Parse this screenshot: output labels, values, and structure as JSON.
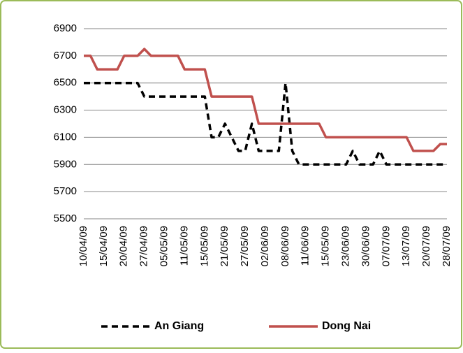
{
  "chart_data": {
    "type": "line",
    "categories": [
      "10/04/09",
      null,
      null,
      "15/04/09",
      null,
      null,
      "20/04/09",
      null,
      null,
      "27/04/09",
      null,
      null,
      "05/05/09",
      null,
      null,
      "11/05/09",
      null,
      null,
      "15/05/09",
      null,
      null,
      "21/05/09",
      null,
      null,
      "27/05/09",
      null,
      null,
      "02/06/09",
      null,
      null,
      "08/06/09",
      null,
      null,
      "11/06/09",
      null,
      null,
      "15/05/09",
      null,
      null,
      "23/06/09",
      null,
      null,
      "30/06/09",
      null,
      null,
      "07/07/09",
      null,
      null,
      "13/07/09",
      null,
      null,
      "20/07/09",
      null,
      null,
      "28/07/09"
    ],
    "series": [
      {
        "name": "An Giang",
        "color": "#000000",
        "dash": true,
        "values": [
          6500,
          6500,
          6500,
          6500,
          6500,
          6500,
          6500,
          6500,
          6500,
          6400,
          6400,
          6400,
          6400,
          6400,
          6400,
          6400,
          6400,
          6400,
          6400,
          6100,
          6100,
          6200,
          6100,
          6000,
          6000,
          6200,
          6000,
          6000,
          6000,
          6000,
          6500,
          6000,
          5900,
          5900,
          5900,
          5900,
          5900,
          5900,
          5900,
          5900,
          6000,
          5900,
          5900,
          5900,
          6000,
          5900,
          5900,
          5900,
          5900,
          5900,
          5900,
          5900,
          5900,
          5900,
          5900
        ]
      },
      {
        "name": "Dong Nai",
        "color": "#c0504d",
        "dash": false,
        "values": [
          6700,
          6700,
          6600,
          6600,
          6600,
          6600,
          6700,
          6700,
          6700,
          6750,
          6700,
          6700,
          6700,
          6700,
          6700,
          6600,
          6600,
          6600,
          6600,
          6400,
          6400,
          6400,
          6400,
          6400,
          6400,
          6400,
          6200,
          6200,
          6200,
          6200,
          6200,
          6200,
          6200,
          6200,
          6200,
          6200,
          6100,
          6100,
          6100,
          6100,
          6100,
          6100,
          6100,
          6100,
          6100,
          6100,
          6100,
          6100,
          6100,
          6000,
          6000,
          6000,
          6000,
          6050,
          6050
        ]
      }
    ],
    "ylim": [
      5500,
      6900
    ],
    "yticks": [
      5500,
      5700,
      5900,
      6100,
      6300,
      6500,
      6700,
      6900
    ],
    "grid": true,
    "legend": "bottom"
  }
}
